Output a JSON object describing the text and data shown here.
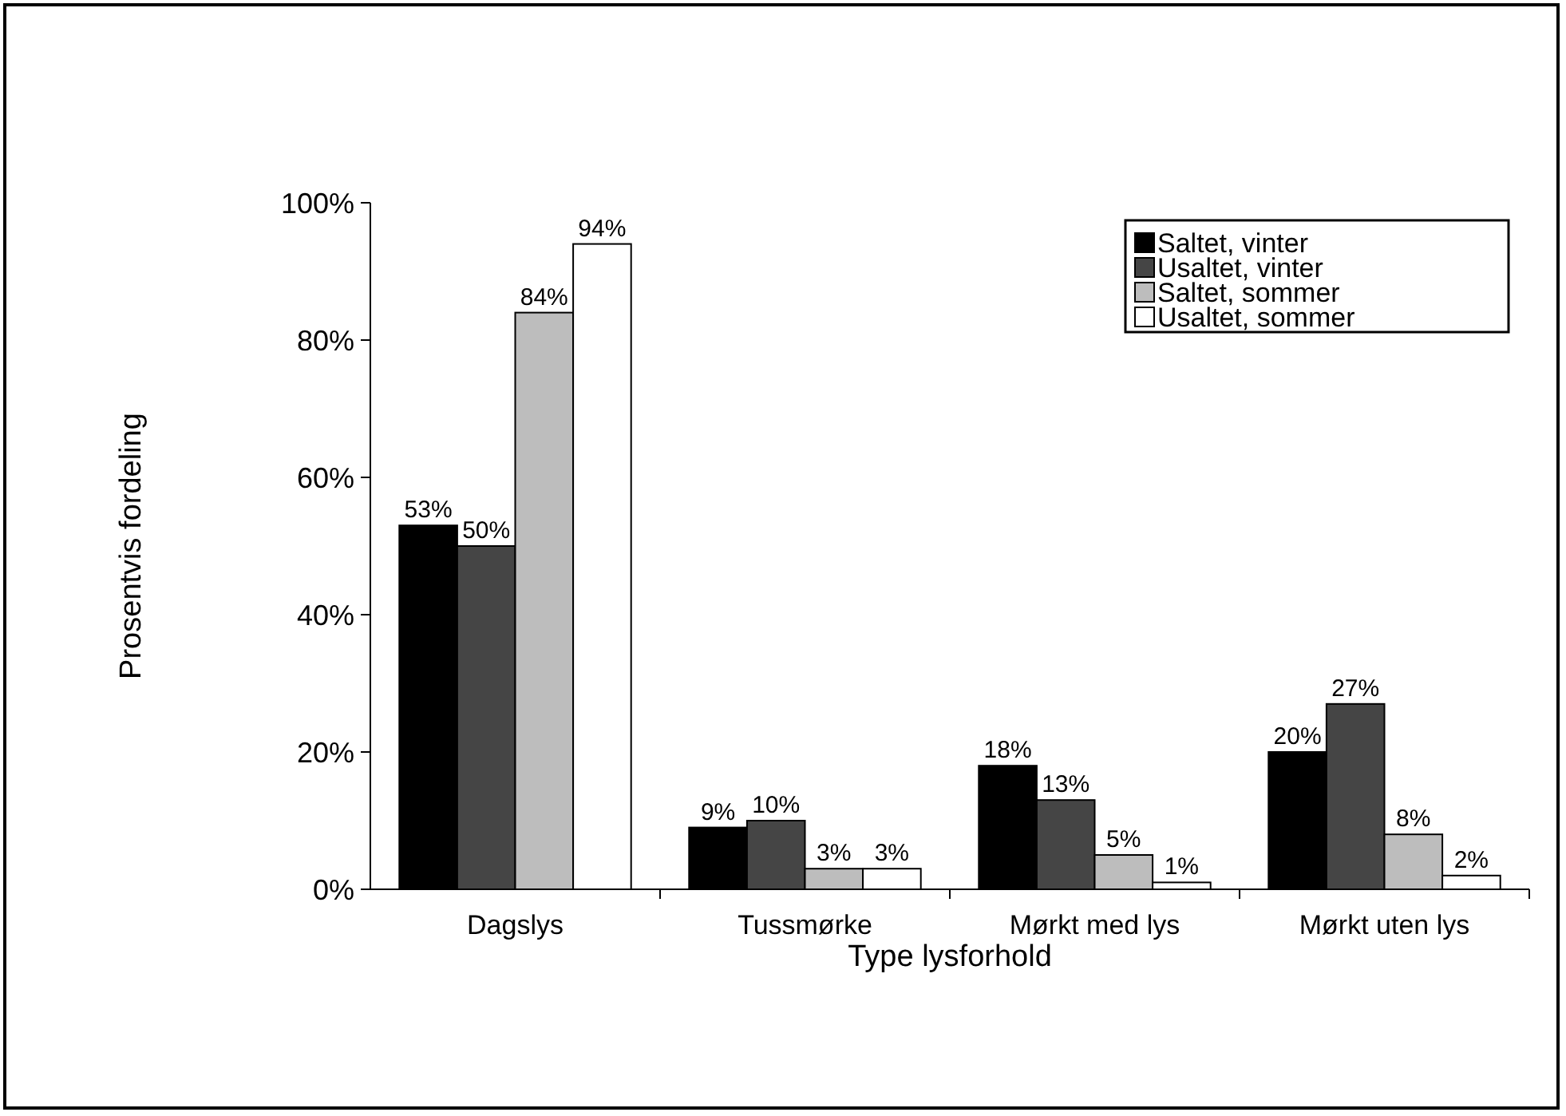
{
  "chart_data": {
    "type": "bar",
    "xlabel": "Type lysforhold",
    "ylabel": "Prosentvis fordeling",
    "categories": [
      "Dagslys",
      "Tussmørke",
      "Mørkt med lys",
      "Mørkt uten lys"
    ],
    "series": [
      {
        "name": "Saltet, vinter",
        "color": "#000000",
        "values": [
          53,
          9,
          18,
          20
        ],
        "value_labels": [
          "53%",
          "9%",
          "18%",
          "20%"
        ]
      },
      {
        "name": "Usaltet, vinter",
        "color": "#454545",
        "values": [
          50,
          10,
          13,
          27
        ],
        "value_labels": [
          "50%",
          "10%",
          "13%",
          "27%"
        ]
      },
      {
        "name": "Saltet, sommer",
        "color": "#bdbdbd",
        "values": [
          84,
          3,
          5,
          8
        ],
        "value_labels": [
          "84%",
          "3%",
          "5%",
          "8%"
        ]
      },
      {
        "name": "Usaltet, sommer",
        "color": "#ffffff",
        "values": [
          94,
          3,
          1,
          2
        ],
        "value_labels": [
          "94%",
          "3%",
          "1%",
          "2%"
        ]
      }
    ],
    "ylim": [
      0,
      100
    ],
    "yticks": [
      {
        "value": 0,
        "label": "0%"
      },
      {
        "value": 20,
        "label": "20%"
      },
      {
        "value": 40,
        "label": "40%"
      },
      {
        "value": 60,
        "label": "60%"
      },
      {
        "value": 80,
        "label": "80%"
      },
      {
        "value": 100,
        "label": "100%"
      }
    ],
    "legend": "top right"
  }
}
